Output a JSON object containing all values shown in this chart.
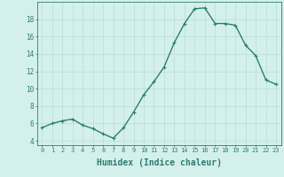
{
  "x": [
    0,
    1,
    2,
    3,
    4,
    5,
    6,
    7,
    8,
    9,
    10,
    11,
    12,
    13,
    14,
    15,
    16,
    17,
    18,
    19,
    20,
    21,
    22,
    23
  ],
  "y": [
    5.5,
    6.0,
    6.3,
    6.5,
    5.8,
    5.4,
    4.8,
    4.3,
    5.5,
    7.3,
    9.3,
    10.8,
    12.5,
    15.3,
    17.5,
    19.2,
    19.3,
    17.5,
    17.5,
    17.3,
    15.0,
    13.8,
    11.0,
    10.5
  ],
  "line_color": "#2e7d72",
  "marker": "+",
  "markersize": 3.5,
  "linewidth": 1.0,
  "bg_color": "#d4f0ec",
  "grid_color": "#b8ddd8",
  "tick_color": "#2e7d72",
  "xlabel": "Humidex (Indice chaleur)",
  "xlabel_fontsize": 7,
  "ylabel_ticks": [
    4,
    6,
    8,
    10,
    12,
    14,
    16,
    18
  ],
  "xlim": [
    -0.5,
    23.5
  ],
  "ylim": [
    3.5,
    20.0
  ],
  "xtick_labels": [
    "0",
    "1",
    "2",
    "3",
    "4",
    "5",
    "6",
    "7",
    "8",
    "9",
    "10",
    "11",
    "12",
    "13",
    "14",
    "15",
    "16",
    "17",
    "18",
    "19",
    "20",
    "21",
    "22",
    "23"
  ],
  "tick_fontsize": 5.0,
  "ytick_fontsize": 5.5
}
